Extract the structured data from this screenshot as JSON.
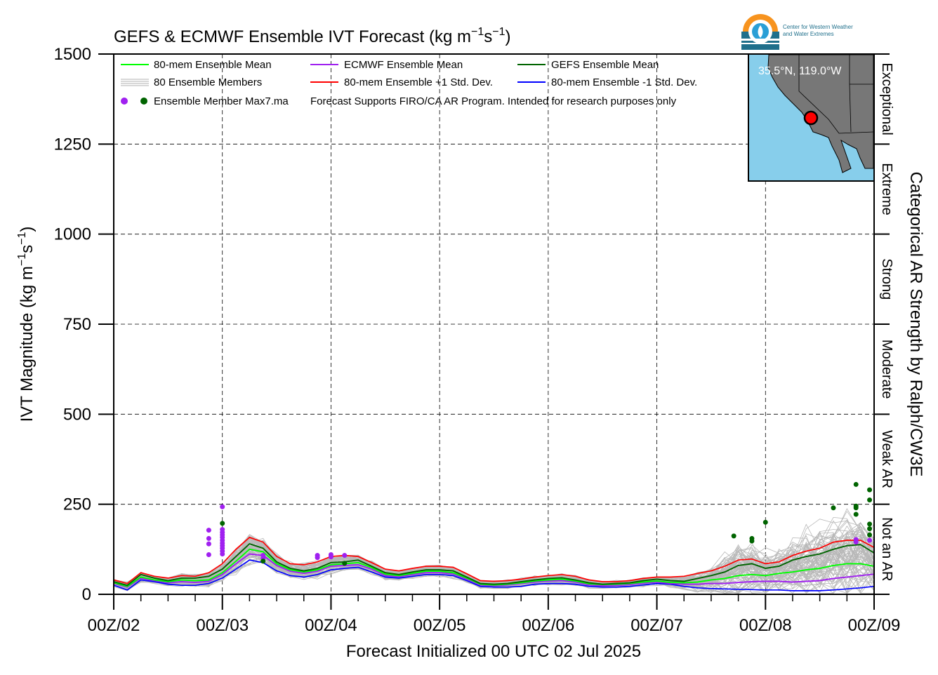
{
  "chart_data": {
    "type": "line",
    "title_main": "GEFS & ECMWF Ensemble IVT Forecast (kg m",
    "title_exp1": "−1",
    "title_mid": "s",
    "title_exp2": "−1",
    "title_end": ")",
    "ylabel_main": "IVT Magnitude (kg m",
    "ylabel_exp1": "−1",
    "ylabel_mid": "s",
    "ylabel_exp2": "−1",
    "ylabel_end": ")",
    "xlabel": "Forecast Initialized 00 UTC 02 Jul 2025",
    "right_axis_label": "Categorical AR Strength by Ralph/CW3E",
    "ylim": [
      0,
      1500
    ],
    "xlim": [
      0,
      168
    ],
    "yticks": [
      {
        "value": 0,
        "label": "0"
      },
      {
        "value": 250,
        "label": "250"
      },
      {
        "value": 500,
        "label": "500"
      },
      {
        "value": 750,
        "label": "750"
      },
      {
        "value": 1000,
        "label": "1000"
      },
      {
        "value": 1250,
        "label": "1250"
      },
      {
        "value": 1500,
        "label": "1500"
      }
    ],
    "xticks": [
      {
        "value": 0,
        "label": "00Z/02"
      },
      {
        "value": 24,
        "label": "00Z/03"
      },
      {
        "value": 48,
        "label": "00Z/04"
      },
      {
        "value": 72,
        "label": "00Z/05"
      },
      {
        "value": 96,
        "label": "00Z/06"
      },
      {
        "value": 120,
        "label": "00Z/07"
      },
      {
        "value": 144,
        "label": "00Z/08"
      },
      {
        "value": 168,
        "label": "00Z/09"
      }
    ],
    "categories": [
      {
        "label": "Not an AR",
        "from": 0,
        "to": 250
      },
      {
        "label": "Weak AR",
        "from": 250,
        "to": 500
      },
      {
        "label": "Moderate",
        "from": 500,
        "to": 750
      },
      {
        "label": "Strong",
        "from": 750,
        "to": 1000
      },
      {
        "label": "Extreme",
        "from": 1000,
        "to": 1250
      },
      {
        "label": "Exceptional",
        "from": 1250,
        "to": 1500
      }
    ],
    "grid": true,
    "legend_placement": "top-left",
    "legend": [
      {
        "label": "80-mem Ensemble Mean",
        "color": "#00ff00",
        "kind": "line"
      },
      {
        "label": "ECMWF Ensemble Mean",
        "color": "#a020f0",
        "kind": "line"
      },
      {
        "label": "GEFS Ensemble Mean",
        "color": "#006400",
        "kind": "line"
      },
      {
        "label": "80 Ensemble Members",
        "color": "#b0b0b0",
        "kind": "members"
      },
      {
        "label": "80-mem Ensemble +1 Std. Dev.",
        "color": "#ff0000",
        "kind": "line"
      },
      {
        "label": "80-mem Ensemble -1 Std. Dev.",
        "color": "#0000ff",
        "kind": "line"
      },
      {
        "label": "Ensemble Member Max7.ma",
        "color": "#a020f0",
        "kind": "dots"
      }
    ],
    "note": "Forecast Supports FIRO/CA AR Program. Intended for research purposes only",
    "map_inset": {
      "location_label": "35.5°N, 119.0°W",
      "point_color": "#ff0000",
      "ocean_color": "#87ceeb",
      "land_color": "#808080"
    },
    "logo_text": [
      "Center for Western Weather",
      "and Water Extremes"
    ],
    "x": [
      0,
      3,
      6,
      9,
      12,
      15,
      18,
      21,
      24,
      27,
      30,
      33,
      36,
      39,
      42,
      45,
      48,
      51,
      54,
      57,
      60,
      63,
      66,
      69,
      72,
      75,
      78,
      81,
      84,
      87,
      90,
      93,
      96,
      99,
      102,
      105,
      108,
      111,
      114,
      117,
      120,
      123,
      126,
      129,
      132,
      135,
      138,
      141,
      144,
      147,
      150,
      153,
      156,
      159,
      162,
      165,
      168
    ],
    "series": [
      {
        "name": "80-mem Ensemble +1 Std. Dev.",
        "color": "#ff0000",
        "width": 1.7,
        "values": [
          40,
          30,
          60,
          50,
          45,
          52,
          50,
          60,
          85,
          125,
          158,
          145,
          105,
          85,
          82,
          90,
          105,
          108,
          105,
          88,
          70,
          65,
          72,
          78,
          78,
          75,
          57,
          38,
          36,
          38,
          42,
          48,
          52,
          55,
          50,
          40,
          35,
          35,
          38,
          44,
          48,
          48,
          50,
          58,
          65,
          78,
          95,
          98,
          85,
          90,
          108,
          120,
          128,
          145,
          150,
          150,
          130
        ]
      },
      {
        "name": "GEFS Ensemble Mean",
        "color": "#006400",
        "width": 1.9,
        "values": [
          35,
          25,
          55,
          45,
          38,
          45,
          45,
          50,
          70,
          105,
          140,
          128,
          90,
          72,
          65,
          72,
          88,
          90,
          95,
          78,
          60,
          55,
          62,
          68,
          68,
          65,
          48,
          30,
          28,
          30,
          35,
          40,
          44,
          46,
          40,
          32,
          28,
          30,
          32,
          38,
          42,
          38,
          36,
          44,
          52,
          62,
          80,
          85,
          72,
          78,
          95,
          105,
          112,
          125,
          135,
          138,
          115
        ]
      },
      {
        "name": "80-mem Ensemble Mean",
        "color": "#00ff00",
        "width": 1.9,
        "values": [
          32,
          22,
          48,
          40,
          35,
          40,
          38,
          40,
          60,
          92,
          125,
          118,
          85,
          68,
          62,
          68,
          82,
          85,
          88,
          74,
          56,
          52,
          58,
          64,
          64,
          60,
          45,
          28,
          26,
          28,
          32,
          37,
          40,
          42,
          37,
          29,
          27,
          28,
          30,
          34,
          37,
          33,
          32,
          34,
          40,
          44,
          52,
          55,
          52,
          58,
          62,
          68,
          72,
          80,
          85,
          85,
          78
        ]
      },
      {
        "name": "ECMWF Ensemble Mean",
        "color": "#a020f0",
        "width": 1.9,
        "values": [
          30,
          20,
          45,
          38,
          32,
          35,
          33,
          36,
          55,
          85,
          112,
          108,
          80,
          64,
          58,
          64,
          78,
          80,
          82,
          70,
          52,
          49,
          55,
          60,
          60,
          57,
          42,
          26,
          24,
          26,
          30,
          34,
          37,
          38,
          34,
          26,
          24,
          25,
          27,
          31,
          34,
          30,
          28,
          28,
          30,
          30,
          33,
          35,
          36,
          36,
          34,
          36,
          38,
          44,
          48,
          52,
          56
        ]
      },
      {
        "name": "80-mem Ensemble -1 Std. Dev.",
        "color": "#0000ff",
        "width": 1.7,
        "values": [
          25,
          12,
          40,
          35,
          28,
          25,
          25,
          30,
          45,
          70,
          95,
          88,
          65,
          52,
          48,
          55,
          68,
          72,
          75,
          62,
          48,
          45,
          50,
          55,
          55,
          52,
          38,
          22,
          20,
          20,
          22,
          28,
          30,
          30,
          28,
          22,
          20,
          20,
          22,
          26,
          30,
          28,
          22,
          18,
          16,
          15,
          14,
          13,
          12,
          12,
          10,
          10,
          10,
          12,
          15,
          18,
          22
        ]
      }
    ],
    "members_count": 80,
    "member_max_points": [
      {
        "x": 21,
        "y": 178,
        "color": "#a020f0"
      },
      {
        "x": 21,
        "y": 155,
        "color": "#a020f0"
      },
      {
        "x": 21,
        "y": 140,
        "color": "#a020f0"
      },
      {
        "x": 21,
        "y": 110,
        "color": "#a020f0"
      },
      {
        "x": 24,
        "y": 243,
        "color": "#a020f0"
      },
      {
        "x": 24,
        "y": 197,
        "color": "#006400"
      },
      {
        "x": 24,
        "y": 180,
        "color": "#a020f0"
      },
      {
        "x": 24,
        "y": 172,
        "color": "#a020f0"
      },
      {
        "x": 24,
        "y": 165,
        "color": "#a020f0"
      },
      {
        "x": 24,
        "y": 158,
        "color": "#a020f0"
      },
      {
        "x": 24,
        "y": 150,
        "color": "#a020f0"
      },
      {
        "x": 24,
        "y": 142,
        "color": "#a020f0"
      },
      {
        "x": 24,
        "y": 135,
        "color": "#a020f0"
      },
      {
        "x": 24,
        "y": 128,
        "color": "#a020f0"
      },
      {
        "x": 24,
        "y": 120,
        "color": "#a020f0"
      },
      {
        "x": 24,
        "y": 112,
        "color": "#a020f0"
      },
      {
        "x": 33,
        "y": 108,
        "color": "#a020f0"
      },
      {
        "x": 33,
        "y": 100,
        "color": "#a020f0"
      },
      {
        "x": 33,
        "y": 92,
        "color": "#006400"
      },
      {
        "x": 45,
        "y": 108,
        "color": "#a020f0"
      },
      {
        "x": 45,
        "y": 102,
        "color": "#a020f0"
      },
      {
        "x": 48,
        "y": 110,
        "color": "#a020f0"
      },
      {
        "x": 48,
        "y": 104,
        "color": "#a020f0"
      },
      {
        "x": 51,
        "y": 108,
        "color": "#a020f0"
      },
      {
        "x": 51,
        "y": 86,
        "color": "#006400"
      },
      {
        "x": 137,
        "y": 162,
        "color": "#006400"
      },
      {
        "x": 141,
        "y": 155,
        "color": "#006400"
      },
      {
        "x": 141,
        "y": 148,
        "color": "#006400"
      },
      {
        "x": 144,
        "y": 200,
        "color": "#006400"
      },
      {
        "x": 159,
        "y": 240,
        "color": "#006400"
      },
      {
        "x": 164,
        "y": 305,
        "color": "#006400"
      },
      {
        "x": 164,
        "y": 245,
        "color": "#006400"
      },
      {
        "x": 164,
        "y": 240,
        "color": "#006400"
      },
      {
        "x": 164,
        "y": 222,
        "color": "#006400"
      },
      {
        "x": 164,
        "y": 152,
        "color": "#a020f0"
      },
      {
        "x": 164,
        "y": 145,
        "color": "#a020f0"
      },
      {
        "x": 167,
        "y": 290,
        "color": "#006400"
      },
      {
        "x": 167,
        "y": 262,
        "color": "#006400"
      },
      {
        "x": 167,
        "y": 195,
        "color": "#006400"
      },
      {
        "x": 167,
        "y": 182,
        "color": "#006400"
      },
      {
        "x": 167,
        "y": 165,
        "color": "#006400"
      },
      {
        "x": 167,
        "y": 150,
        "color": "#a020f0"
      }
    ]
  }
}
